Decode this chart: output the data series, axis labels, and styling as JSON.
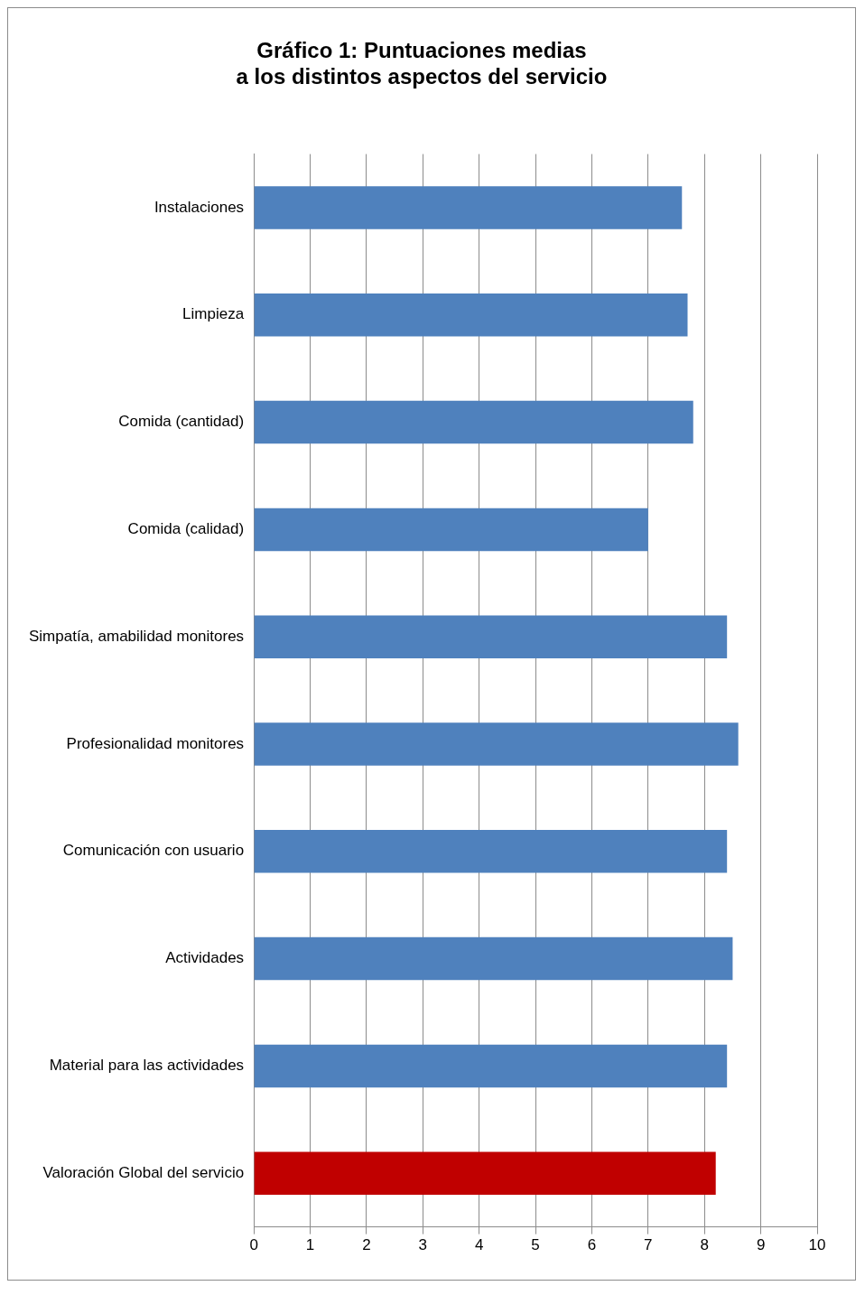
{
  "chart_data": {
    "type": "bar",
    "orientation": "horizontal",
    "title": "Gráfico 1: Puntuaciones medias\na los distintos aspectos del servicio",
    "categories": [
      "Instalaciones",
      "Limpieza",
      "Comida (cantidad)",
      "Comida (calidad)",
      "Simpatía, amabilidad monitores",
      "Profesionalidad monitores",
      "Comunicación con usuario",
      "Actividades",
      "Material para las actividades",
      "Valoración Global del servicio"
    ],
    "values": [
      7.6,
      7.7,
      7.8,
      7.0,
      8.4,
      8.6,
      8.4,
      8.5,
      8.4,
      8.2
    ],
    "colors": [
      "#4f81bd",
      "#4f81bd",
      "#4f81bd",
      "#4f81bd",
      "#4f81bd",
      "#4f81bd",
      "#4f81bd",
      "#4f81bd",
      "#4f81bd",
      "#c00000"
    ],
    "xlim": [
      0,
      10
    ],
    "xticks": [
      0,
      1,
      2,
      3,
      4,
      5,
      6,
      7,
      8,
      9,
      10
    ],
    "grid": "x",
    "legend": false
  }
}
